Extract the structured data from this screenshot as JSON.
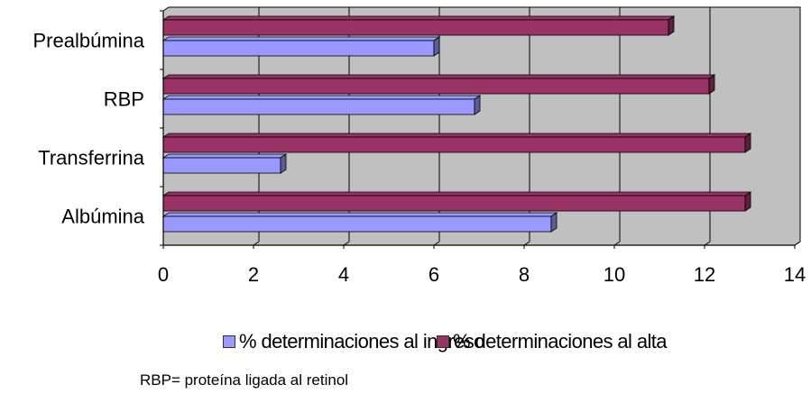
{
  "chart_data": {
    "type": "bar",
    "orientation": "horizontal",
    "categories": [
      "Prealbúmina",
      "RBP",
      "Transferrina",
      "Albúmina"
    ],
    "series": [
      {
        "name": "% determinaciones al alta",
        "color": "#993366",
        "values": [
          11.2,
          12.1,
          12.9,
          12.9
        ]
      },
      {
        "name": "% determinaciones al ingreso",
        "color": "#9999ff",
        "values": [
          6.0,
          6.9,
          2.6,
          8.6
        ]
      }
    ],
    "xlim": [
      0,
      14
    ],
    "xticks": [
      "0",
      "2",
      "4",
      "6",
      "8",
      "10",
      "12",
      "14"
    ],
    "grid": true,
    "plot_background": "#c0c0c0",
    "legend_position": "bottom"
  },
  "legend": {
    "items": [
      {
        "label": "% determinaciones al ingreso",
        "color": "#9999ff"
      },
      {
        "label": "% determinaciones al alta",
        "color": "#993366"
      }
    ]
  },
  "footnote": "RBP= proteína ligada al retinol"
}
